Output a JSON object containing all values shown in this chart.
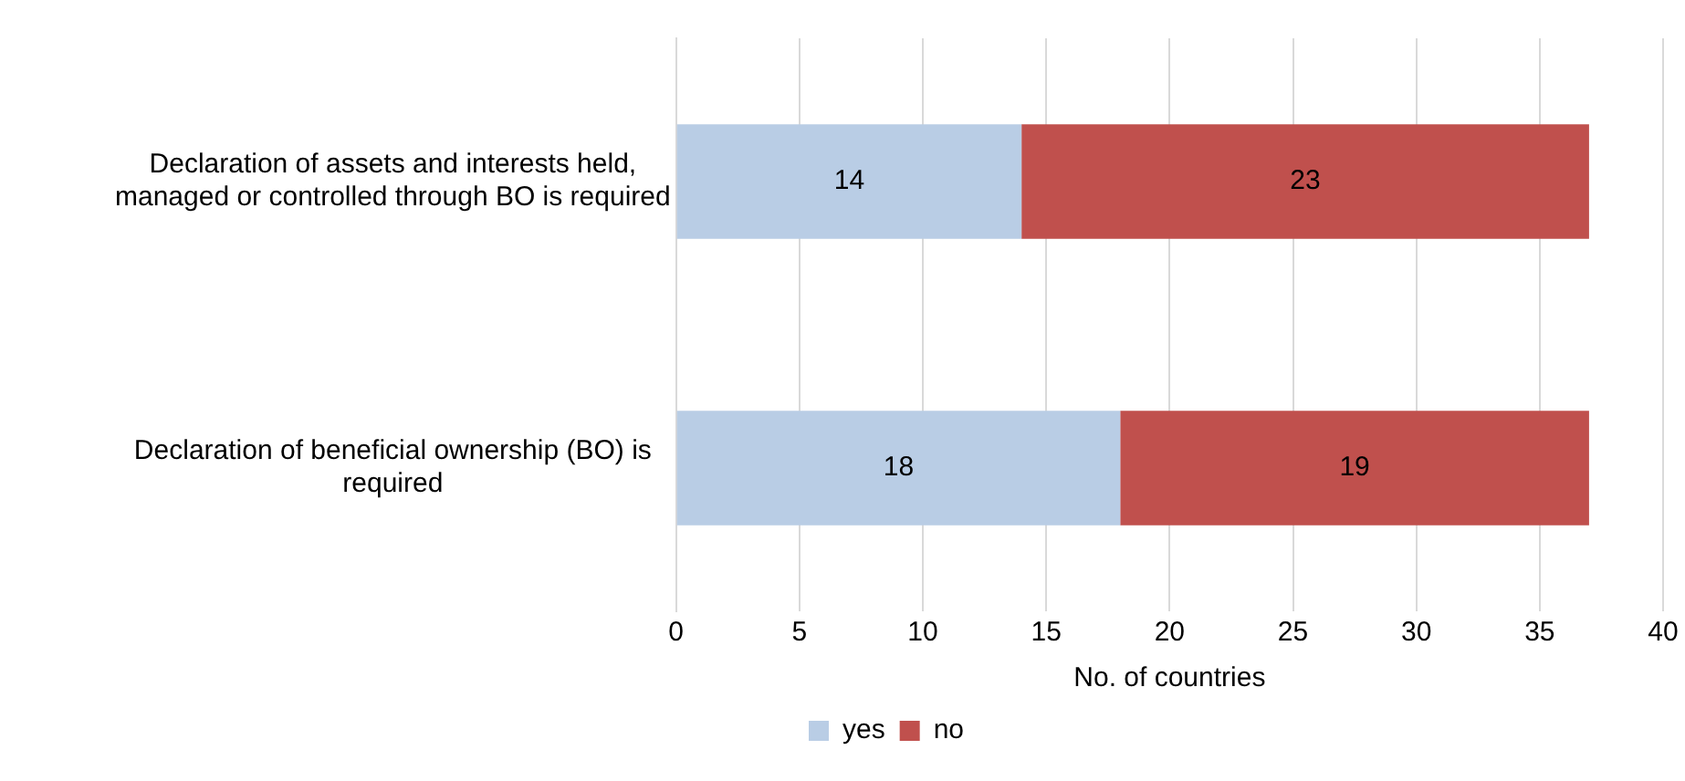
{
  "chart_data": {
    "type": "bar",
    "orientation": "horizontal",
    "stacked": true,
    "categories": [
      "Declaration of assets and interests held, managed or controlled through BO is required",
      "Declaration of beneficial ownership (BO) is required"
    ],
    "series": [
      {
        "name": "yes",
        "color": "#b9cde5",
        "values": [
          14,
          18
        ]
      },
      {
        "name": "no",
        "color": "#c0504d",
        "values": [
          23,
          19
        ]
      }
    ],
    "xlabel": "No. of countries",
    "xlim": [
      0,
      40
    ],
    "xticks": [
      0,
      5,
      10,
      15,
      20,
      25,
      30,
      35,
      40
    ],
    "grid": "x",
    "legend": "bottom",
    "data_labels": true
  }
}
